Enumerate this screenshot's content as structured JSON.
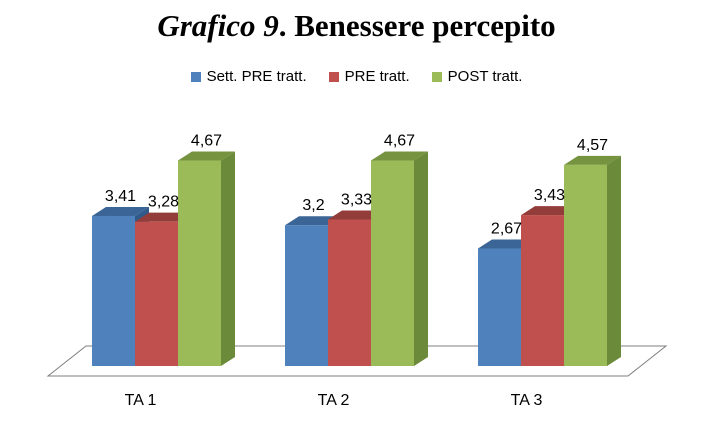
{
  "chart_data": {
    "type": "bar",
    "title_lead": "Grafico 9",
    "title_rest": ". Benessere percepito",
    "categories": [
      "TA 1",
      "TA 2",
      "TA 3"
    ],
    "series": [
      {
        "name": "Sett. PRE tratt.",
        "values": [
          3.41,
          3.2,
          2.67
        ],
        "labels": [
          "3,41",
          "3,2",
          "2,67"
        ]
      },
      {
        "name": "PRE tratt.",
        "values": [
          3.28,
          3.33,
          3.43
        ],
        "labels": [
          "3,28",
          "3,33",
          "3,43"
        ]
      },
      {
        "name": "POST tratt.",
        "values": [
          4.67,
          4.67,
          4.57
        ],
        "labels": [
          "4,67",
          "4,67",
          "4,57"
        ]
      }
    ],
    "ylim": [
      0,
      5
    ],
    "grid": false,
    "legend_position": "top",
    "three_d": true
  },
  "colors": {
    "series": [
      "#4f81bd",
      "#c0504d",
      "#9bbb59"
    ],
    "series_dark": [
      "#2f5a8a",
      "#8a3432",
      "#6b8a3a"
    ],
    "series_side": [
      "#3b6596",
      "#933d3a",
      "#76933f"
    ]
  }
}
